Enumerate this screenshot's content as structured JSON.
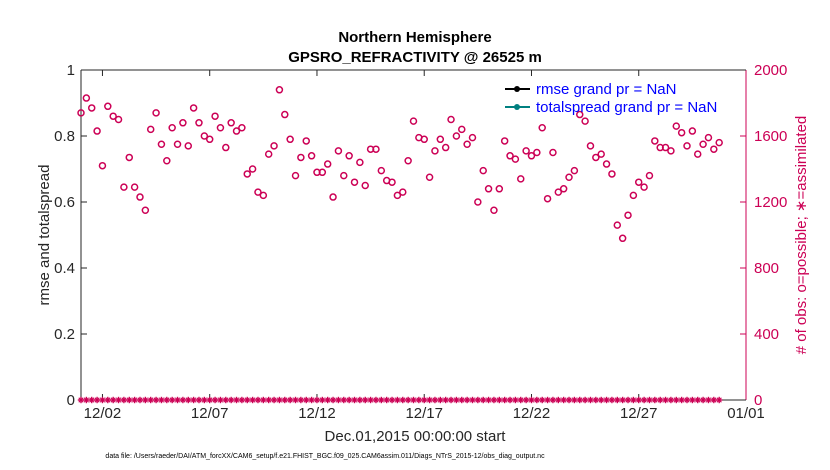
{
  "chart_data": {
    "type": "scatter",
    "title": "Northern Hemisphere",
    "subtitle": "GPSRO_REFRACTIVITY @ 26525 m",
    "xlabel": "Dec.01,2015 00:00:00 start",
    "ylabel_left": "rmse and totalspread",
    "ylabel_right": "# of obs: o=possible; ∗=assimilated",
    "xlim": [
      0,
      31
    ],
    "x_ticks": [
      {
        "value": 1,
        "label": "12/02"
      },
      {
        "value": 6,
        "label": "12/07"
      },
      {
        "value": 11,
        "label": "12/12"
      },
      {
        "value": 16,
        "label": "12/17"
      },
      {
        "value": 21,
        "label": "12/22"
      },
      {
        "value": 26,
        "label": "12/27"
      },
      {
        "value": 31,
        "label": "01/01"
      }
    ],
    "ylim_left": [
      0,
      1
    ],
    "y_ticks_left": [
      "0",
      "0.2",
      "0.4",
      "0.6",
      "0.8",
      "1"
    ],
    "ylim_right": [
      0,
      2000
    ],
    "y_ticks_right": [
      "0",
      "400",
      "800",
      "1200",
      "1600",
      "2000"
    ],
    "legend": [
      {
        "label": "rmse grand pr = NaN",
        "color": "#000000"
      },
      {
        "label": "totalspread grand pr = NaN",
        "color": "#008080"
      }
    ],
    "series": [
      {
        "name": "possible obs",
        "marker": "o",
        "color": "#cc0055",
        "axis": "right",
        "x_step": 0.25,
        "values": [
          1740,
          1830,
          1770,
          1630,
          1420,
          1780,
          1720,
          1700,
          1290,
          1470,
          1290,
          1230,
          1150,
          1640,
          1740,
          1550,
          1450,
          1650,
          1550,
          1680,
          1540,
          1770,
          1680,
          1600,
          1580,
          1720,
          1650,
          1530,
          1680,
          1630,
          1650,
          1370,
          1400,
          1260,
          1240,
          1490,
          1540,
          1880,
          1730,
          1580,
          1360,
          1470,
          1570,
          1480,
          1380,
          1380,
          1430,
          1230,
          1510,
          1360,
          1480,
          1320,
          1440,
          1300,
          1520,
          1520,
          1390,
          1330,
          1320,
          1240,
          1260,
          1450,
          1690,
          1590,
          1580,
          1350,
          1510,
          1580,
          1530,
          1700,
          1600,
          1640,
          1550,
          1590,
          1200,
          1390,
          1280,
          1150,
          1280,
          1570,
          1480,
          1460,
          1340,
          1510,
          1480,
          1500,
          1650,
          1220,
          1500,
          1260,
          1280,
          1350,
          1390,
          1730,
          1690,
          1540,
          1470,
          1490,
          1430,
          1370,
          1060,
          980,
          1120,
          1240,
          1320,
          1290,
          1360,
          1570,
          1530,
          1530,
          1510,
          1660,
          1620,
          1540,
          1630,
          1490,
          1550,
          1590,
          1520,
          1560
        ]
      },
      {
        "name": "assimilated obs",
        "marker": "*",
        "color": "#cc0055",
        "axis": "right",
        "values": "0 at every time step"
      }
    ]
  },
  "footnote": "data file: /Users/raeder/DAI/ATM_forcXX/CAM6_setup/f.e21.FHIST_BGC.f09_025.CAM6assim.011/Diags_NTrS_2015-12/obs_diag_output.nc"
}
